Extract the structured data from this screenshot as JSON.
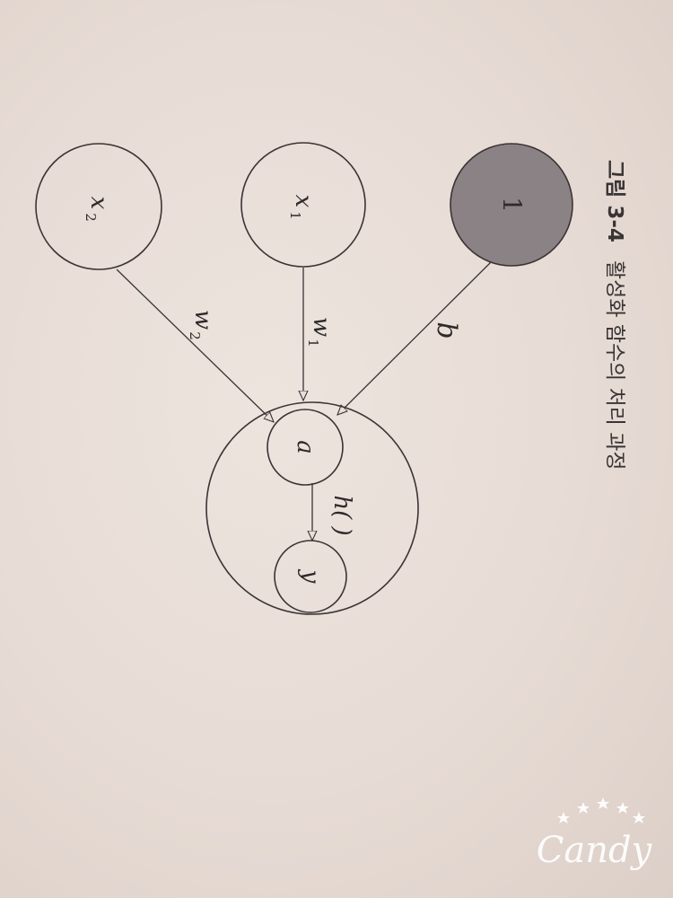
{
  "caption": {
    "number": "그림 3-4",
    "title": "활성화 함수의 처리 과정"
  },
  "nodes": {
    "bias": "1",
    "x1_base": "x",
    "x1_sub": "1",
    "x2_base": "x",
    "x2_sub": "2",
    "a": "a",
    "y": "y"
  },
  "edges": {
    "bias_weight": "b",
    "w1_base": "w",
    "w1_sub": "1",
    "w2_base": "w",
    "w2_sub": "2",
    "activation": "h( )"
  },
  "watermark": {
    "text": "Candy"
  },
  "colors": {
    "bias_fill": "#8a8284",
    "paper": "#e8ddd6",
    "ink": "#3a3434"
  }
}
